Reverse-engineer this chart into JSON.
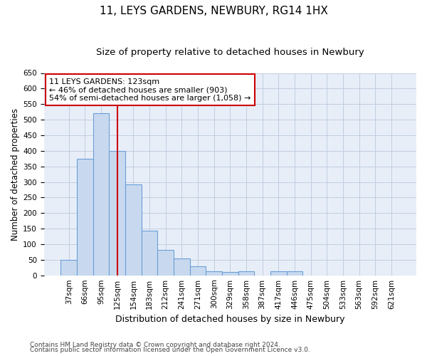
{
  "title": "11, LEYS GARDENS, NEWBURY, RG14 1HX",
  "subtitle": "Size of property relative to detached houses in Newbury",
  "xlabel": "Distribution of detached houses by size in Newbury",
  "ylabel": "Number of detached properties",
  "bar_color": "#c8d9ef",
  "bar_edge_color": "#6a9fd8",
  "categories": [
    "37sqm",
    "66sqm",
    "95sqm",
    "125sqm",
    "154sqm",
    "183sqm",
    "212sqm",
    "241sqm",
    "271sqm",
    "300sqm",
    "329sqm",
    "358sqm",
    "387sqm",
    "417sqm",
    "446sqm",
    "475sqm",
    "504sqm",
    "533sqm",
    "563sqm",
    "592sqm",
    "621sqm"
  ],
  "values": [
    50,
    375,
    520,
    400,
    293,
    143,
    82,
    55,
    30,
    12,
    10,
    12,
    0,
    12,
    12,
    0,
    0,
    0,
    0,
    0,
    0
  ],
  "ylim": [
    0,
    650
  ],
  "yticks": [
    0,
    50,
    100,
    150,
    200,
    250,
    300,
    350,
    400,
    450,
    500,
    550,
    600,
    650
  ],
  "vline_x": 3.0,
  "vline_color": "#cc0000",
  "annot_line1": "11 LEYS GARDENS: 123sqm",
  "annot_line2": "← 46% of detached houses are smaller (903)",
  "annot_line3": "54% of semi-detached houses are larger (1,058) →",
  "annotation_box_color": "#ffffff",
  "annotation_border_color": "#cc0000",
  "footer_line1": "Contains HM Land Registry data © Crown copyright and database right 2024.",
  "footer_line2": "Contains public sector information licensed under the Open Government Licence v3.0.",
  "background_color": "#ffffff",
  "axes_bg_color": "#e8eef8",
  "grid_color": "#c0cde0",
  "title_fontsize": 11,
  "subtitle_fontsize": 9.5,
  "tick_fontsize": 7.5,
  "ylabel_fontsize": 8.5,
  "xlabel_fontsize": 9,
  "annot_fontsize": 8,
  "footer_fontsize": 6.5
}
